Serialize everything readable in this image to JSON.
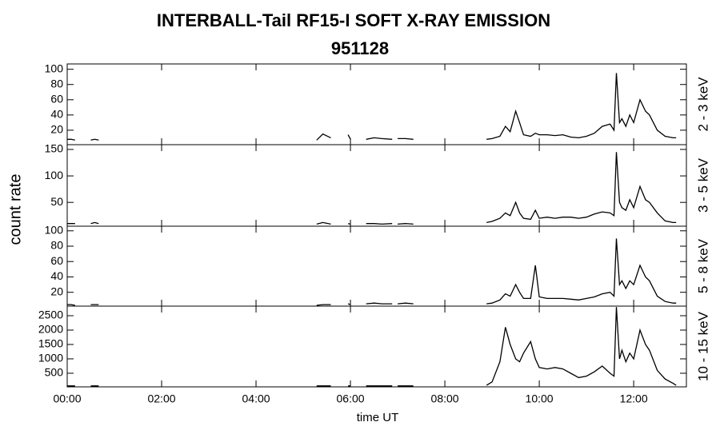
{
  "title": "INTERBALL-Tail RF15-I SOFT X-RAY EMISSION",
  "subtitle": "951128",
  "xlabel": "time UT",
  "ylabel": "count rate",
  "chart_data": [
    {
      "type": "line",
      "ylabel": "2 - 3 keV",
      "color": "#000000",
      "x": [
        0,
        5,
        10,
        20,
        30,
        35,
        40,
        50,
        100,
        200,
        300,
        317,
        325,
        335,
        345,
        357,
        360,
        370,
        380,
        390,
        400,
        413,
        417,
        420,
        430,
        440,
        450,
        500,
        533,
        540,
        550,
        557,
        563,
        570,
        575,
        580,
        589,
        595,
        600,
        610,
        620,
        630,
        640,
        650,
        660,
        670,
        680,
        690,
        695,
        698,
        702,
        705,
        710,
        715,
        720,
        728,
        735,
        740,
        750,
        760,
        770,
        774
      ],
      "values": [
        8,
        8,
        7,
        null,
        7,
        8,
        7,
        null,
        null,
        null,
        null,
        7,
        15,
        10,
        null,
        14,
        8,
        null,
        8,
        10,
        9,
        8,
        null,
        9,
        9,
        8,
        null,
        null,
        8,
        9,
        12,
        25,
        18,
        45,
        30,
        14,
        12,
        16,
        14,
        14,
        13,
        14,
        11,
        10,
        12,
        16,
        25,
        28,
        20,
        95,
        30,
        35,
        25,
        40,
        30,
        60,
        45,
        40,
        20,
        12,
        10,
        10
      ],
      "xlim": [
        0,
        787
      ],
      "xticks": [
        {
          "value": 0,
          "label": "00:00"
        },
        {
          "value": 120,
          "label": "02:00"
        },
        {
          "value": 240,
          "label": "04:00"
        },
        {
          "value": 360,
          "label": "06:00"
        },
        {
          "value": 480,
          "label": "08:00"
        },
        {
          "value": 600,
          "label": "10:00"
        },
        {
          "value": 720,
          "label": "12:00"
        }
      ],
      "ylim": [
        1,
        107
      ],
      "yticks": [
        20,
        40,
        60,
        80,
        100
      ]
    },
    {
      "type": "line",
      "ylabel": "3 - 5 keV",
      "color": "#000000",
      "x": [
        0,
        5,
        10,
        20,
        30,
        35,
        40,
        50,
        100,
        200,
        300,
        317,
        325,
        335,
        345,
        357,
        360,
        370,
        380,
        390,
        400,
        413,
        417,
        420,
        430,
        440,
        450,
        500,
        533,
        540,
        550,
        557,
        563,
        570,
        575,
        580,
        589,
        595,
        600,
        610,
        620,
        630,
        640,
        650,
        660,
        670,
        680,
        690,
        695,
        698,
        702,
        705,
        710,
        715,
        720,
        728,
        735,
        740,
        750,
        760,
        770,
        774
      ],
      "values": [
        10,
        10,
        10,
        null,
        10,
        12,
        10,
        null,
        null,
        null,
        null,
        9,
        12,
        9,
        null,
        10,
        9,
        null,
        10,
        10,
        9,
        10,
        null,
        9,
        10,
        9,
        null,
        null,
        12,
        14,
        20,
        30,
        25,
        50,
        30,
        20,
        18,
        35,
        20,
        22,
        20,
        22,
        22,
        20,
        22,
        28,
        32,
        30,
        25,
        145,
        50,
        40,
        35,
        55,
        40,
        80,
        55,
        50,
        30,
        15,
        12,
        12
      ],
      "xlim": [
        0,
        787
      ],
      "xticks": [
        {
          "value": 0,
          "label": "00:00"
        },
        {
          "value": 120,
          "label": "02:00"
        },
        {
          "value": 240,
          "label": "04:00"
        },
        {
          "value": 360,
          "label": "06:00"
        },
        {
          "value": 480,
          "label": "08:00"
        },
        {
          "value": 600,
          "label": "10:00"
        },
        {
          "value": 720,
          "label": "12:00"
        }
      ],
      "ylim": [
        5,
        159
      ],
      "yticks": [
        50,
        100,
        150
      ]
    },
    {
      "type": "line",
      "ylabel": "5 - 8 keV",
      "color": "#000000",
      "x": [
        0,
        5,
        10,
        20,
        30,
        35,
        40,
        50,
        100,
        200,
        300,
        317,
        325,
        335,
        345,
        357,
        360,
        370,
        380,
        390,
        400,
        413,
        417,
        420,
        430,
        440,
        450,
        500,
        533,
        540,
        550,
        557,
        563,
        570,
        575,
        580,
        589,
        595,
        600,
        610,
        620,
        630,
        640,
        650,
        660,
        670,
        680,
        690,
        695,
        698,
        702,
        705,
        710,
        715,
        720,
        728,
        735,
        740,
        750,
        760,
        770,
        774
      ],
      "values": [
        4,
        4,
        3,
        null,
        4,
        4,
        4,
        null,
        null,
        null,
        null,
        3,
        4,
        4,
        null,
        5,
        4,
        null,
        5,
        6,
        5,
        5,
        null,
        5,
        6,
        5,
        null,
        null,
        5,
        6,
        10,
        18,
        15,
        30,
        20,
        12,
        12,
        55,
        14,
        12,
        12,
        12,
        11,
        10,
        12,
        14,
        18,
        20,
        15,
        90,
        30,
        35,
        25,
        35,
        30,
        55,
        40,
        35,
        15,
        8,
        6,
        6
      ],
      "xlim": [
        0,
        787
      ],
      "xticks": [
        {
          "value": 0,
          "label": "00:00"
        },
        {
          "value": 120,
          "label": "02:00"
        },
        {
          "value": 240,
          "label": "04:00"
        },
        {
          "value": 360,
          "label": "06:00"
        },
        {
          "value": 480,
          "label": "08:00"
        },
        {
          "value": 600,
          "label": "10:00"
        },
        {
          "value": 720,
          "label": "12:00"
        }
      ],
      "ylim": [
        2,
        106
      ],
      "yticks": [
        20,
        40,
        60,
        80,
        100
      ]
    },
    {
      "type": "line",
      "ylabel": "10 - 15 keV",
      "color": "#000000",
      "x": [
        0,
        5,
        10,
        20,
        30,
        35,
        40,
        50,
        100,
        200,
        300,
        317,
        325,
        335,
        345,
        357,
        360,
        370,
        380,
        390,
        400,
        413,
        417,
        420,
        430,
        440,
        450,
        500,
        533,
        540,
        550,
        557,
        563,
        570,
        575,
        580,
        589,
        595,
        600,
        610,
        620,
        630,
        640,
        650,
        660,
        670,
        680,
        690,
        695,
        698,
        702,
        705,
        710,
        715,
        720,
        728,
        735,
        740,
        750,
        760,
        770,
        774
      ],
      "values": [
        60,
        60,
        60,
        null,
        60,
        60,
        60,
        null,
        null,
        null,
        null,
        60,
        60,
        60,
        null,
        60,
        60,
        null,
        60,
        60,
        60,
        60,
        null,
        60,
        60,
        60,
        null,
        null,
        80,
        200,
        900,
        2100,
        1500,
        1000,
        900,
        1200,
        1600,
        1000,
        700,
        650,
        700,
        650,
        500,
        350,
        400,
        550,
        750,
        500,
        400,
        2800,
        1000,
        1300,
        900,
        1200,
        1000,
        2000,
        1500,
        1300,
        600,
        300,
        150,
        80
      ],
      "xlim": [
        0,
        787
      ],
      "xticks": [
        {
          "value": 0,
          "label": "00:00"
        },
        {
          "value": 120,
          "label": "02:00"
        },
        {
          "value": 240,
          "label": "04:00"
        },
        {
          "value": 360,
          "label": "06:00"
        },
        {
          "value": 480,
          "label": "08:00"
        },
        {
          "value": 600,
          "label": "10:00"
        },
        {
          "value": 720,
          "label": "12:00"
        }
      ],
      "ylim": [
        27,
        2833
      ],
      "yticks": [
        500,
        1000,
        1500,
        2000,
        2500
      ]
    }
  ]
}
